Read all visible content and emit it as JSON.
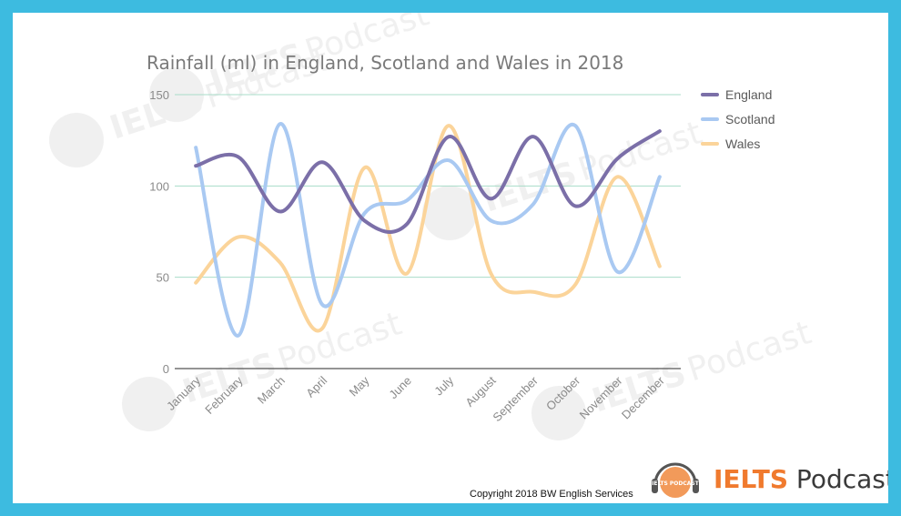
{
  "chart_data": {
    "type": "line",
    "title": "Rainfall (ml) in England, Scotland and Wales in 2018",
    "categories": [
      "January",
      "February",
      "March",
      "April",
      "May",
      "June",
      "July",
      "August",
      "September",
      "October",
      "November",
      "December"
    ],
    "ylim": [
      0,
      150
    ],
    "yticks": [
      "0",
      "50",
      "100",
      "150"
    ],
    "grid": true,
    "legend_position": "top-right",
    "series": [
      {
        "name": "England",
        "color": "#7b6fa8",
        "values": [
          111,
          116,
          86,
          113,
          81,
          79,
          127,
          93,
          127,
          89,
          115,
          130
        ]
      },
      {
        "name": "Scotland",
        "color": "#a9c9f2",
        "values": [
          121,
          18,
          134,
          35,
          85,
          92,
          114,
          81,
          90,
          133,
          53,
          105
        ]
      },
      {
        "name": "Wales",
        "color": "#fbd49a",
        "values": [
          47,
          72,
          58,
          22,
          110,
          52,
          133,
          52,
          42,
          46,
          105,
          56
        ]
      }
    ]
  },
  "copyright": "Copyright 2018 BW English Services",
  "brand": {
    "logo_badge": "IELTS PODCAST",
    "name_bold": "IELTS",
    "name_rest": " Podcast"
  },
  "watermark": {
    "badge": "IELTS PODCAST",
    "word": "IELTS",
    "word2": "Podcast"
  }
}
